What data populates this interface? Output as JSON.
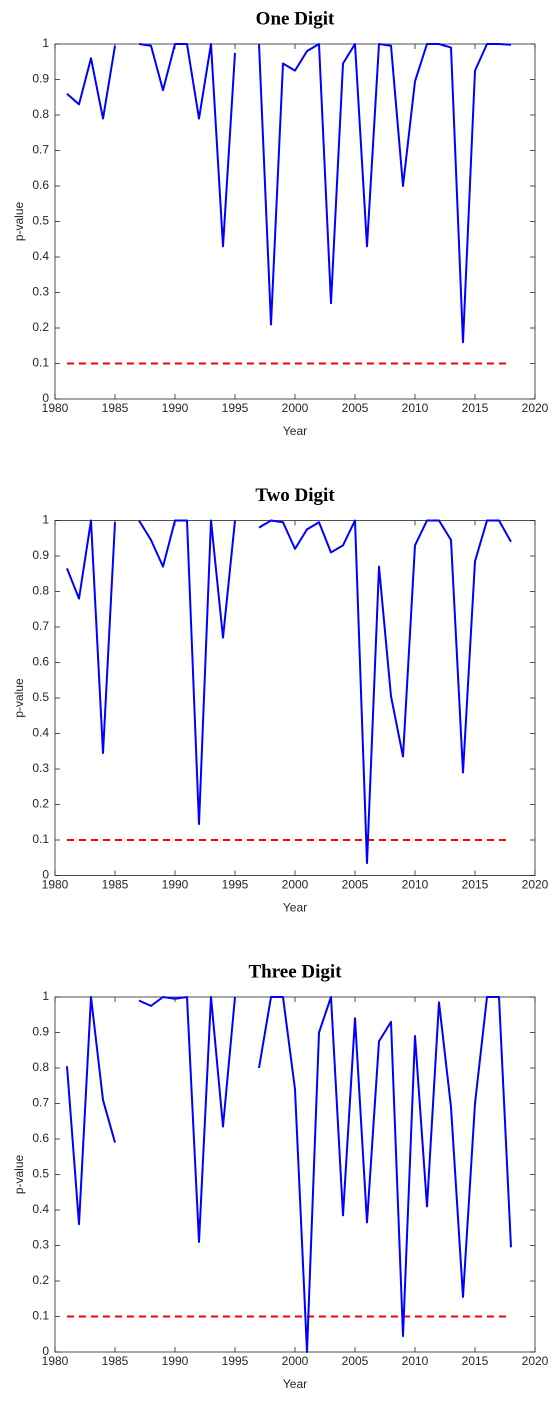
{
  "chart_data": [
    {
      "type": "line",
      "title": "One Digit",
      "x_label": "Year",
      "y_label": "p-value",
      "x": [
        1981,
        1982,
        1983,
        1984,
        1985,
        1986,
        1987,
        1988,
        1989,
        1990,
        1991,
        1992,
        1993,
        1994,
        1995,
        1996,
        1997,
        1998,
        1999,
        2000,
        2001,
        2002,
        2003,
        2004,
        2005,
        2006,
        2007,
        2008,
        2009,
        2010,
        2011,
        2012,
        2013,
        2014,
        2015,
        2016,
        2017,
        2018
      ],
      "series": [
        {
          "color": "#0000ff",
          "values": [
            0.86,
            0.83,
            0.96,
            0.79,
            0.995,
            null,
            1.0,
            0.995,
            0.87,
            1.0,
            1.0,
            0.79,
            1.0,
            0.43,
            0.975,
            null,
            1.0,
            0.21,
            0.945,
            0.925,
            0.98,
            1.0,
            0.27,
            0.945,
            1.0,
            0.43,
            1.0,
            0.995,
            0.6,
            0.895,
            1.0,
            1.0,
            0.99,
            0.16,
            0.925,
            1.0,
            1.0,
            0.998
          ]
        }
      ],
      "threshold": {
        "value": 0.1,
        "color": "#ff0000"
      },
      "xlim": [
        1980,
        2020
      ],
      "xticks": [
        1980,
        1985,
        1990,
        1995,
        2000,
        2005,
        2010,
        2015,
        2020
      ],
      "ylim": [
        0,
        1
      ],
      "yticks": [
        0,
        0.1,
        0.2,
        0.3,
        0.4,
        0.5,
        0.6,
        0.7,
        0.8,
        0.9,
        1
      ]
    },
    {
      "type": "line",
      "title": "Two Digit",
      "x_label": "Year",
      "y_label": "p-value",
      "x": [
        1981,
        1982,
        1983,
        1984,
        1985,
        1986,
        1987,
        1988,
        1989,
        1990,
        1991,
        1992,
        1993,
        1994,
        1995,
        1996,
        1997,
        1998,
        1999,
        2000,
        2001,
        2002,
        2003,
        2004,
        2005,
        2006,
        2007,
        2008,
        2009,
        2010,
        2011,
        2012,
        2013,
        2014,
        2015,
        2016,
        2017,
        2018
      ],
      "series": [
        {
          "color": "#0000ff",
          "values": [
            0.865,
            0.78,
            1.0,
            0.345,
            0.995,
            null,
            1.0,
            0.945,
            0.87,
            1.0,
            1.0,
            0.145,
            1.0,
            0.67,
            1.0,
            null,
            0.98,
            1.0,
            0.995,
            0.92,
            0.975,
            0.995,
            0.91,
            0.93,
            1.0,
            0.035,
            0.87,
            0.505,
            0.335,
            0.93,
            1.0,
            1.0,
            0.945,
            0.29,
            0.885,
            1.0,
            1.0,
            0.94
          ]
        }
      ],
      "threshold": {
        "value": 0.1,
        "color": "#ff0000"
      },
      "xlim": [
        1980,
        2020
      ],
      "xticks": [
        1980,
        1985,
        1990,
        1995,
        2000,
        2005,
        2010,
        2015,
        2020
      ],
      "ylim": [
        0,
        1
      ],
      "yticks": [
        0,
        0.1,
        0.2,
        0.3,
        0.4,
        0.5,
        0.6,
        0.7,
        0.8,
        0.9,
        1
      ]
    },
    {
      "type": "line",
      "title": "Three Digit",
      "x_label": "Year",
      "y_label": "p-value",
      "x": [
        1981,
        1982,
        1983,
        1984,
        1985,
        1986,
        1987,
        1988,
        1989,
        1990,
        1991,
        1992,
        1993,
        1994,
        1995,
        1996,
        1997,
        1998,
        1999,
        2000,
        2001,
        2002,
        2003,
        2004,
        2005,
        2006,
        2007,
        2008,
        2009,
        2010,
        2011,
        2012,
        2013,
        2014,
        2015,
        2016,
        2017,
        2018
      ],
      "series": [
        {
          "color": "#0000ff",
          "values": [
            0.805,
            0.36,
            1.0,
            0.71,
            0.59,
            null,
            0.99,
            0.975,
            1.0,
            0.995,
            1.0,
            0.31,
            1.0,
            0.635,
            1.0,
            null,
            0.8,
            1.0,
            1.0,
            0.74,
            0.0,
            0.9,
            1.0,
            0.385,
            0.94,
            0.365,
            0.875,
            0.93,
            0.045,
            0.89,
            0.41,
            0.985,
            0.69,
            0.155,
            0.7,
            1.0,
            1.0,
            0.295
          ]
        }
      ],
      "threshold": {
        "value": 0.1,
        "color": "#ff0000"
      },
      "xlim": [
        1980,
        2020
      ],
      "xticks": [
        1980,
        1985,
        1990,
        1995,
        2000,
        2005,
        2010,
        2015,
        2020
      ],
      "ylim": [
        0,
        1
      ],
      "yticks": [
        0,
        0.1,
        0.2,
        0.3,
        0.4,
        0.5,
        0.6,
        0.7,
        0.8,
        0.9,
        1
      ]
    }
  ]
}
